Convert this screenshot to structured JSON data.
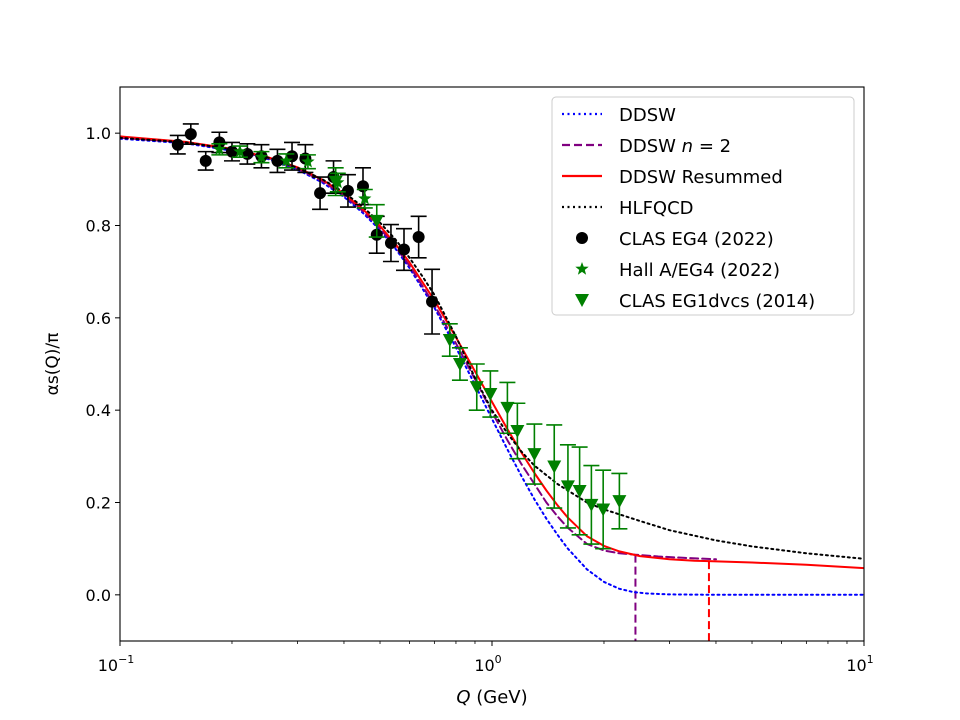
{
  "chart_data": {
    "type": "line",
    "xscale": "log",
    "xlim": [
      0.1,
      10
    ],
    "ylim": [
      -0.1,
      1.1
    ],
    "xlabel_var": "Q",
    "xlabel_unit": " (GeV)",
    "ylabel": "αs(Q)/π",
    "xticks": [
      {
        "value": 0.1,
        "mantissa": "10",
        "exponent": "−1"
      },
      {
        "value": 1,
        "mantissa": "10",
        "exponent": "0"
      },
      {
        "value": 10,
        "mantissa": "10",
        "exponent": "1"
      }
    ],
    "yticks": [
      {
        "value": 0.0,
        "label": "0.0"
      },
      {
        "value": 0.2,
        "label": "0.2"
      },
      {
        "value": 0.4,
        "label": "0.4"
      },
      {
        "value": 0.6,
        "label": "0.6"
      },
      {
        "value": 0.8,
        "label": "0.8"
      },
      {
        "value": 1.0,
        "label": "1.0"
      }
    ],
    "legend_position": "top-right",
    "series": [
      {
        "name": "DDSW",
        "kind": "line",
        "style": "dotted",
        "color": "#0000ff",
        "x": [
          0.1,
          0.15,
          0.2,
          0.25,
          0.3,
          0.35,
          0.4,
          0.45,
          0.5,
          0.55,
          0.6,
          0.7,
          0.8,
          0.9,
          1.0,
          1.1,
          1.2,
          1.3,
          1.4,
          1.5,
          1.6,
          1.8,
          2.0,
          2.2,
          2.4,
          2.6,
          3.0,
          4.0,
          6.0,
          10.0
        ],
        "y": [
          0.988,
          0.978,
          0.962,
          0.944,
          0.921,
          0.893,
          0.862,
          0.827,
          0.79,
          0.75,
          0.708,
          0.622,
          0.536,
          0.455,
          0.381,
          0.315,
          0.257,
          0.207,
          0.165,
          0.13,
          0.1,
          0.055,
          0.028,
          0.013,
          0.006,
          0.003,
          0.001,
          0.0,
          0.0,
          0.0
        ]
      },
      {
        "name": "DDSW n=2",
        "kind": "line",
        "style": "dashed",
        "color": "#800080",
        "x": [
          0.1,
          0.15,
          0.2,
          0.25,
          0.3,
          0.35,
          0.4,
          0.45,
          0.5,
          0.55,
          0.6,
          0.7,
          0.8,
          0.9,
          1.0,
          1.1,
          1.2,
          1.3,
          1.4,
          1.5,
          1.6,
          1.8,
          2.0,
          2.2,
          2.43,
          2.8,
          3.3,
          4.0
        ],
        "y": [
          0.99,
          0.98,
          0.964,
          0.946,
          0.923,
          0.896,
          0.865,
          0.831,
          0.794,
          0.754,
          0.713,
          0.628,
          0.545,
          0.467,
          0.396,
          0.335,
          0.283,
          0.24,
          0.2,
          0.17,
          0.145,
          0.11,
          0.096,
          0.09,
          0.087,
          0.083,
          0.08,
          0.077
        ]
      },
      {
        "name": "DDSW Resummed",
        "kind": "line",
        "style": "solid",
        "color": "#ff0000",
        "x": [
          0.1,
          0.15,
          0.2,
          0.25,
          0.3,
          0.35,
          0.4,
          0.45,
          0.5,
          0.55,
          0.6,
          0.7,
          0.8,
          0.9,
          1.0,
          1.1,
          1.2,
          1.3,
          1.4,
          1.5,
          1.6,
          1.8,
          2.0,
          2.2,
          2.5,
          3.0,
          3.5,
          3.83,
          5.0,
          7.0,
          10.0
        ],
        "y": [
          0.993,
          0.981,
          0.966,
          0.948,
          0.926,
          0.899,
          0.869,
          0.835,
          0.799,
          0.76,
          0.72,
          0.638,
          0.558,
          0.484,
          0.418,
          0.359,
          0.308,
          0.264,
          0.226,
          0.194,
          0.167,
          0.127,
          0.106,
          0.094,
          0.084,
          0.077,
          0.074,
          0.073,
          0.07,
          0.065,
          0.058
        ]
      },
      {
        "name": "HLFQCD",
        "kind": "line",
        "style": "dotted",
        "color": "#000000",
        "x": [
          0.1,
          0.15,
          0.2,
          0.25,
          0.3,
          0.35,
          0.4,
          0.45,
          0.5,
          0.55,
          0.6,
          0.65,
          0.7,
          0.8,
          0.9,
          1.0,
          1.1,
          1.2,
          1.3,
          1.5,
          1.8,
          2.0,
          2.5,
          3.0,
          4.0,
          5.0,
          7.0,
          10.0
        ],
        "y": [
          0.99,
          0.98,
          0.965,
          0.947,
          0.925,
          0.9,
          0.872,
          0.84,
          0.806,
          0.77,
          0.73,
          0.69,
          0.65,
          0.56,
          0.47,
          0.4,
          0.35,
          0.31,
          0.28,
          0.24,
          0.2,
          0.185,
          0.16,
          0.14,
          0.118,
          0.105,
          0.09,
          0.078
        ]
      }
    ],
    "datasets": [
      {
        "name": "CLAS EG4 (2022)",
        "kind": "errorbar",
        "marker": "circle",
        "color": "#000000",
        "points": [
          {
            "x": 0.143,
            "y": 0.975,
            "err": 0.02
          },
          {
            "x": 0.155,
            "y": 0.998,
            "err": 0.022
          },
          {
            "x": 0.17,
            "y": 0.94,
            "err": 0.02
          },
          {
            "x": 0.185,
            "y": 0.98,
            "err": 0.022
          },
          {
            "x": 0.2,
            "y": 0.96,
            "err": 0.02
          },
          {
            "x": 0.22,
            "y": 0.955,
            "err": 0.022
          },
          {
            "x": 0.24,
            "y": 0.95,
            "err": 0.025
          },
          {
            "x": 0.265,
            "y": 0.94,
            "err": 0.025
          },
          {
            "x": 0.29,
            "y": 0.95,
            "err": 0.03
          },
          {
            "x": 0.315,
            "y": 0.945,
            "err": 0.03
          },
          {
            "x": 0.345,
            "y": 0.87,
            "err": 0.035
          },
          {
            "x": 0.375,
            "y": 0.905,
            "err": 0.035
          },
          {
            "x": 0.41,
            "y": 0.875,
            "err": 0.035
          },
          {
            "x": 0.45,
            "y": 0.885,
            "err": 0.04
          },
          {
            "x": 0.49,
            "y": 0.78,
            "err": 0.04
          },
          {
            "x": 0.535,
            "y": 0.762,
            "err": 0.04
          },
          {
            "x": 0.58,
            "y": 0.748,
            "err": 0.045
          },
          {
            "x": 0.635,
            "y": 0.775,
            "err": 0.045
          },
          {
            "x": 0.69,
            "y": 0.635,
            "err": 0.07
          }
        ]
      },
      {
        "name": "Hall A/EG4 (2022)",
        "kind": "errorbar",
        "marker": "star",
        "color": "#008000",
        "points": [
          {
            "x": 0.185,
            "y": 0.965,
            "err": 0.012
          },
          {
            "x": 0.21,
            "y": 0.96,
            "err": 0.012
          },
          {
            "x": 0.24,
            "y": 0.948,
            "err": 0.012
          },
          {
            "x": 0.28,
            "y": 0.94,
            "err": 0.015
          },
          {
            "x": 0.32,
            "y": 0.938,
            "err": 0.015
          },
          {
            "x": 0.385,
            "y": 0.893,
            "err": 0.02
          },
          {
            "x": 0.455,
            "y": 0.858,
            "err": 0.02
          }
        ]
      },
      {
        "name": "CLAS EG1dvcs (2014)",
        "kind": "errorbar",
        "marker": "triangle-down",
        "color": "#008000",
        "points": [
          {
            "x": 0.38,
            "y": 0.895,
            "err": 0.03
          },
          {
            "x": 0.49,
            "y": 0.81,
            "err": 0.035
          },
          {
            "x": 0.77,
            "y": 0.552,
            "err": 0.035
          },
          {
            "x": 0.82,
            "y": 0.5,
            "err": 0.035
          },
          {
            "x": 0.91,
            "y": 0.45,
            "err": 0.05
          },
          {
            "x": 0.99,
            "y": 0.435,
            "err": 0.05
          },
          {
            "x": 1.1,
            "y": 0.405,
            "err": 0.055
          },
          {
            "x": 1.17,
            "y": 0.355,
            "err": 0.06
          },
          {
            "x": 1.3,
            "y": 0.305,
            "err": 0.065
          },
          {
            "x": 1.47,
            "y": 0.278,
            "err": 0.09
          },
          {
            "x": 1.6,
            "y": 0.235,
            "err": 0.09
          },
          {
            "x": 1.72,
            "y": 0.225,
            "err": 0.095
          },
          {
            "x": 1.85,
            "y": 0.195,
            "err": 0.085
          },
          {
            "x": 1.99,
            "y": 0.185,
            "err": 0.085
          },
          {
            "x": 2.2,
            "y": 0.203,
            "err": 0.06
          }
        ]
      }
    ],
    "cutoffs": [
      {
        "name": "DDSW n=2 cutoff",
        "x": 2.43,
        "y_top": 0.087,
        "color": "#800080"
      },
      {
        "name": "DDSW Resummed cutoff",
        "x": 3.83,
        "y_top": 0.073,
        "color": "#ff0000"
      }
    ],
    "legend": [
      {
        "label_main": "DDSW",
        "label_var": "",
        "label_tail": "",
        "kind": "line",
        "style": "dotted",
        "color": "#0000ff"
      },
      {
        "label_main": "DDSW ",
        "label_var": "n",
        "label_tail": " = 2",
        "kind": "line",
        "style": "dashed",
        "color": "#800080"
      },
      {
        "label_main": "DDSW Resummed",
        "label_var": "",
        "label_tail": "",
        "kind": "line",
        "style": "solid",
        "color": "#ff0000"
      },
      {
        "label_main": "HLFQCD",
        "label_var": "",
        "label_tail": "",
        "kind": "line",
        "style": "dotted",
        "color": "#000000"
      },
      {
        "label_main": "CLAS EG4 (2022)",
        "label_var": "",
        "label_tail": "",
        "kind": "marker",
        "marker": "circle",
        "color": "#000000"
      },
      {
        "label_main": "Hall A/EG4 (2022)",
        "label_var": "",
        "label_tail": "",
        "kind": "marker",
        "marker": "star",
        "color": "#008000"
      },
      {
        "label_main": "CLAS EG1dvcs (2014)",
        "label_var": "",
        "label_tail": "",
        "kind": "marker",
        "marker": "triangle-down",
        "color": "#008000"
      }
    ]
  }
}
